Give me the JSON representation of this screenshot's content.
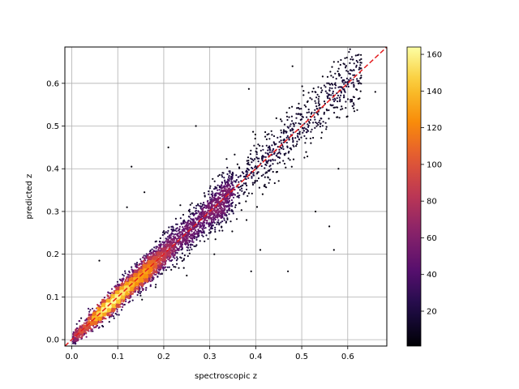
{
  "chart_data": {
    "type": "scatter",
    "title": "",
    "xlabel": "spectroscopic z",
    "ylabel": "predicted z",
    "xlim": [
      -0.015,
      0.685
    ],
    "ylim": [
      -0.015,
      0.685
    ],
    "xticks": [
      0.0,
      0.1,
      0.2,
      0.3,
      0.4,
      0.5,
      0.6
    ],
    "yticks": [
      0.0,
      0.1,
      0.2,
      0.3,
      0.4,
      0.5,
      0.6
    ],
    "xtick_labels": [
      "0.0",
      "0.1",
      "0.2",
      "0.3",
      "0.4",
      "0.5",
      "0.6"
    ],
    "ytick_labels": [
      "0.0",
      "0.1",
      "0.2",
      "0.3",
      "0.4",
      "0.5",
      "0.6"
    ],
    "grid": true,
    "colormap": "inferno",
    "point_color_encoding": "density",
    "colorbar": {
      "range": [
        1,
        164
      ],
      "ticks": [
        20,
        40,
        60,
        80,
        100,
        120,
        140,
        160
      ],
      "tick_labels": [
        "20",
        "40",
        "60",
        "80",
        "100",
        "120",
        "140",
        "160"
      ]
    },
    "reference_line": {
      "type": "y=x",
      "x": [
        -0.015,
        0.685
      ],
      "y": [
        -0.015,
        0.685
      ],
      "color": "#e41a1c",
      "style": "dashed"
    },
    "points_summary": "dense band along y=x, densest near z 0.05-0.2, scatter widens with z",
    "outliers": [
      {
        "x": 0.13,
        "y": 0.405
      },
      {
        "x": 0.158,
        "y": 0.345
      },
      {
        "x": 0.21,
        "y": 0.45
      },
      {
        "x": 0.27,
        "y": 0.5
      },
      {
        "x": 0.385,
        "y": 0.587
      },
      {
        "x": 0.48,
        "y": 0.64
      },
      {
        "x": 0.57,
        "y": 0.65
      },
      {
        "x": 0.6,
        "y": 0.6
      },
      {
        "x": 0.66,
        "y": 0.58
      },
      {
        "x": 0.56,
        "y": 0.265
      },
      {
        "x": 0.57,
        "y": 0.21
      },
      {
        "x": 0.53,
        "y": 0.3
      },
      {
        "x": 0.47,
        "y": 0.16
      },
      {
        "x": 0.38,
        "y": 0.28
      },
      {
        "x": 0.39,
        "y": 0.16
      },
      {
        "x": 0.25,
        "y": 0.15
      },
      {
        "x": 0.31,
        "y": 0.2
      },
      {
        "x": 0.06,
        "y": 0.185
      },
      {
        "x": 0.12,
        "y": 0.31
      },
      {
        "x": 0.43,
        "y": 0.47
      },
      {
        "x": 0.52,
        "y": 0.46
      },
      {
        "x": 0.58,
        "y": 0.4
      },
      {
        "x": 0.41,
        "y": 0.21
      }
    ]
  }
}
